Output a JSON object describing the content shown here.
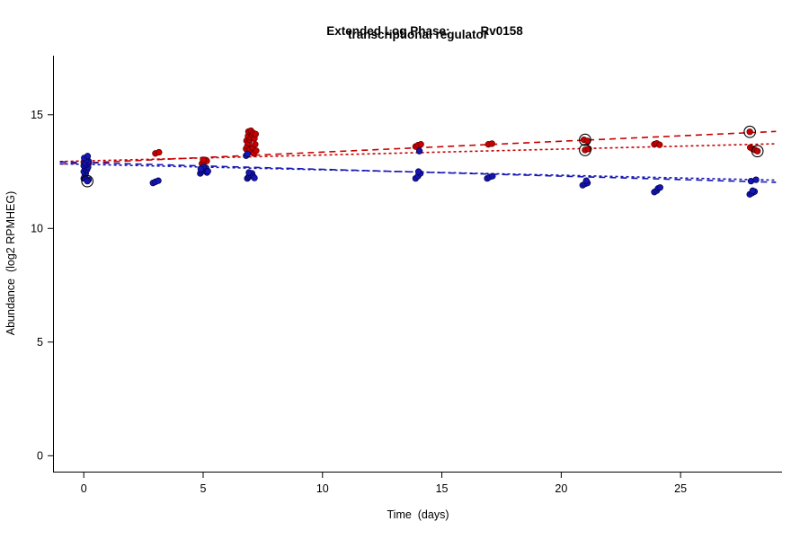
{
  "title": {
    "prefix": "Extended Log Phase:",
    "gene": "Rv0158",
    "line2": "transcriptional regulator"
  },
  "chart_data": {
    "type": "scatter",
    "title": "Extended Log Phase: Rv0158 transcriptional regulator",
    "xlabel": "Time  (days)",
    "ylabel": "Abundance  (log2 RPMHEG)",
    "xlim": [
      -1.25,
      29.25
    ],
    "ylim": [
      -0.7,
      17.6
    ],
    "xticks": [
      0,
      5,
      10,
      15,
      20,
      25
    ],
    "yticks": [
      0,
      5,
      10,
      15
    ],
    "grid": false,
    "legend": "none",
    "series": [
      {
        "name": "red-condition",
        "color": "#c80000",
        "edge": "#600000",
        "points": [
          [
            0.0,
            12.92
          ],
          [
            0.12,
            12.98
          ],
          [
            0.2,
            12.86
          ],
          [
            3.0,
            13.3
          ],
          [
            3.15,
            13.35
          ],
          [
            4.95,
            12.85
          ],
          [
            5.05,
            12.92
          ],
          [
            5.15,
            12.97
          ],
          [
            5.0,
            13.02
          ],
          [
            6.8,
            13.5
          ],
          [
            6.82,
            13.86
          ],
          [
            6.85,
            13.62
          ],
          [
            6.88,
            14.06
          ],
          [
            6.9,
            13.76
          ],
          [
            6.9,
            14.26
          ],
          [
            6.94,
            13.46
          ],
          [
            6.96,
            13.9
          ],
          [
            7.0,
            14.0
          ],
          [
            7.0,
            14.3
          ],
          [
            7.04,
            13.36
          ],
          [
            7.06,
            14.1
          ],
          [
            7.08,
            13.56
          ],
          [
            7.1,
            14.2
          ],
          [
            7.12,
            13.3
          ],
          [
            7.15,
            13.96
          ],
          [
            7.18,
            13.7
          ],
          [
            7.2,
            14.15
          ],
          [
            7.22,
            13.42
          ],
          [
            13.9,
            13.6
          ],
          [
            14.0,
            13.66
          ],
          [
            14.12,
            13.7
          ],
          [
            16.95,
            13.7
          ],
          [
            17.1,
            13.73
          ],
          [
            20.95,
            13.9
          ],
          [
            21.1,
            13.85
          ],
          [
            21.0,
            13.45
          ],
          [
            21.15,
            13.5
          ],
          [
            23.9,
            13.7
          ],
          [
            24.0,
            13.74
          ],
          [
            24.12,
            13.68
          ],
          [
            27.9,
            14.25
          ],
          [
            27.92,
            13.56
          ],
          [
            28.02,
            13.5
          ],
          [
            28.12,
            13.45
          ],
          [
            28.22,
            13.4
          ]
        ]
      },
      {
        "name": "blue-condition",
        "color": "#1616b4",
        "edge": "#000050",
        "points": [
          [
            0.0,
            12.2
          ],
          [
            0.04,
            12.3
          ],
          [
            0.08,
            12.42
          ],
          [
            0.0,
            12.5
          ],
          [
            0.1,
            12.55
          ],
          [
            0.14,
            12.6
          ],
          [
            0.05,
            12.66
          ],
          [
            0.18,
            12.7
          ],
          [
            0.0,
            12.76
          ],
          [
            0.1,
            12.8
          ],
          [
            0.15,
            12.86
          ],
          [
            0.06,
            12.9
          ],
          [
            0.2,
            12.96
          ],
          [
            0.1,
            13.02
          ],
          [
            0.02,
            13.1
          ],
          [
            0.16,
            13.18
          ],
          [
            0.2,
            12.14
          ],
          [
            0.15,
            12.08
          ],
          [
            2.9,
            12.0
          ],
          [
            3.0,
            12.05
          ],
          [
            3.12,
            12.1
          ],
          [
            4.88,
            12.42
          ],
          [
            4.94,
            12.5
          ],
          [
            5.0,
            12.56
          ],
          [
            5.06,
            12.6
          ],
          [
            5.12,
            12.66
          ],
          [
            5.0,
            12.7
          ],
          [
            5.16,
            12.46
          ],
          [
            4.9,
            12.62
          ],
          [
            5.2,
            12.52
          ],
          [
            6.85,
            12.2
          ],
          [
            6.9,
            12.26
          ],
          [
            6.95,
            12.3
          ],
          [
            7.0,
            12.36
          ],
          [
            7.05,
            12.42
          ],
          [
            7.1,
            12.28
          ],
          [
            6.92,
            12.46
          ],
          [
            7.15,
            12.22
          ],
          [
            6.8,
            13.2
          ],
          [
            6.86,
            13.28
          ],
          [
            13.9,
            12.2
          ],
          [
            14.0,
            12.3
          ],
          [
            14.1,
            12.42
          ],
          [
            14.02,
            12.5
          ],
          [
            14.06,
            13.4
          ],
          [
            16.9,
            12.2
          ],
          [
            17.0,
            12.26
          ],
          [
            17.12,
            12.3
          ],
          [
            20.9,
            11.9
          ],
          [
            21.0,
            11.96
          ],
          [
            21.1,
            12.0
          ],
          [
            21.05,
            12.1
          ],
          [
            23.9,
            11.6
          ],
          [
            24.0,
            11.66
          ],
          [
            24.06,
            11.76
          ],
          [
            24.14,
            11.8
          ],
          [
            27.9,
            11.5
          ],
          [
            28.0,
            11.56
          ],
          [
            28.1,
            11.62
          ],
          [
            28.02,
            11.66
          ],
          [
            27.95,
            12.08
          ],
          [
            28.16,
            12.14
          ]
        ]
      }
    ],
    "circled_points": [
      [
        0.15,
        12.08
      ],
      [
        21.0,
        13.9
      ],
      [
        21.0,
        13.45
      ],
      [
        27.9,
        14.25
      ],
      [
        28.22,
        13.4
      ]
    ],
    "trend_lines": [
      {
        "series": "red-condition",
        "color": "#c80000",
        "intercept": 12.88,
        "slope": 0.0478,
        "dash": "7,5"
      },
      {
        "series": "red-condition",
        "color": "#c80000",
        "intercept": 12.97,
        "slope": 0.026,
        "dash": "3,3"
      },
      {
        "series": "blue-condition",
        "color": "#1616b4",
        "intercept": 12.9,
        "slope": -0.03,
        "dash": "7,5"
      },
      {
        "series": "blue-condition",
        "color": "#1616b4",
        "intercept": 12.82,
        "slope": -0.024,
        "dash": "3,3"
      }
    ]
  }
}
